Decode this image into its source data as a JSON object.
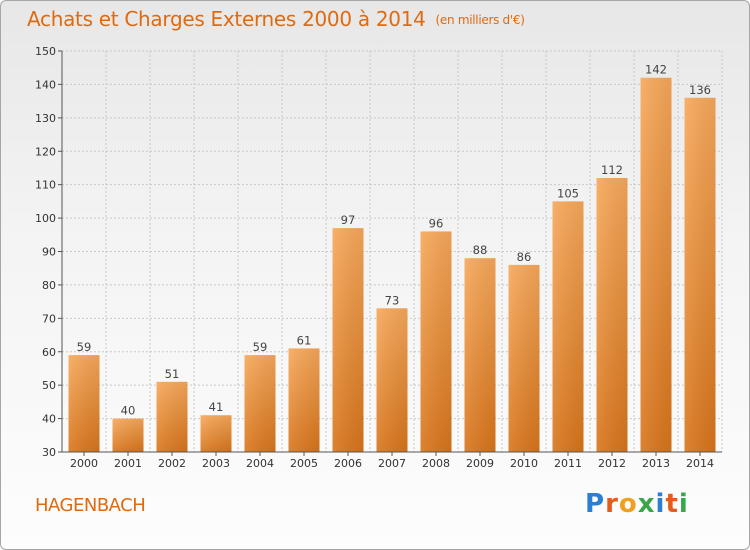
{
  "title": "Achats et Charges Externes 2000 à 2014",
  "subtitle": "(en milliers d'€)",
  "commune": "HAGENBACH",
  "logo": {
    "text": "Proxiti",
    "letters": [
      {
        "char": "P",
        "color": "#2a7fd4"
      },
      {
        "char": "r",
        "color": "#e85a1a"
      },
      {
        "char": "o",
        "color": "#f0a020"
      },
      {
        "char": "x",
        "color": "#3aa64a"
      },
      {
        "char": "i",
        "color": "#2a7fd4"
      },
      {
        "char": "t",
        "color": "#e85a1a"
      },
      {
        "char": "i",
        "color": "#3aa64a"
      }
    ]
  },
  "colors": {
    "accent": "#e06a10",
    "bar_light": "#f7a85a",
    "bar_dark": "#d8751b",
    "grid": "#c8c8c8"
  },
  "chart_data": {
    "type": "bar",
    "title": "Achats et Charges Externes 2000 à 2014",
    "subtitle": "(en milliers d'€)",
    "xlabel": "",
    "ylabel": "",
    "categories": [
      "2000",
      "2001",
      "2002",
      "2003",
      "2004",
      "2005",
      "2006",
      "2007",
      "2008",
      "2009",
      "2010",
      "2011",
      "2012",
      "2013",
      "2014"
    ],
    "values": [
      59,
      40,
      51,
      41,
      59,
      61,
      97,
      73,
      96,
      88,
      86,
      105,
      112,
      142,
      136
    ],
    "ylim": [
      30,
      150
    ],
    "yticks": [
      30,
      40,
      50,
      60,
      70,
      80,
      90,
      100,
      110,
      120,
      130,
      140,
      150
    ],
    "grid": true,
    "legend": "none"
  }
}
